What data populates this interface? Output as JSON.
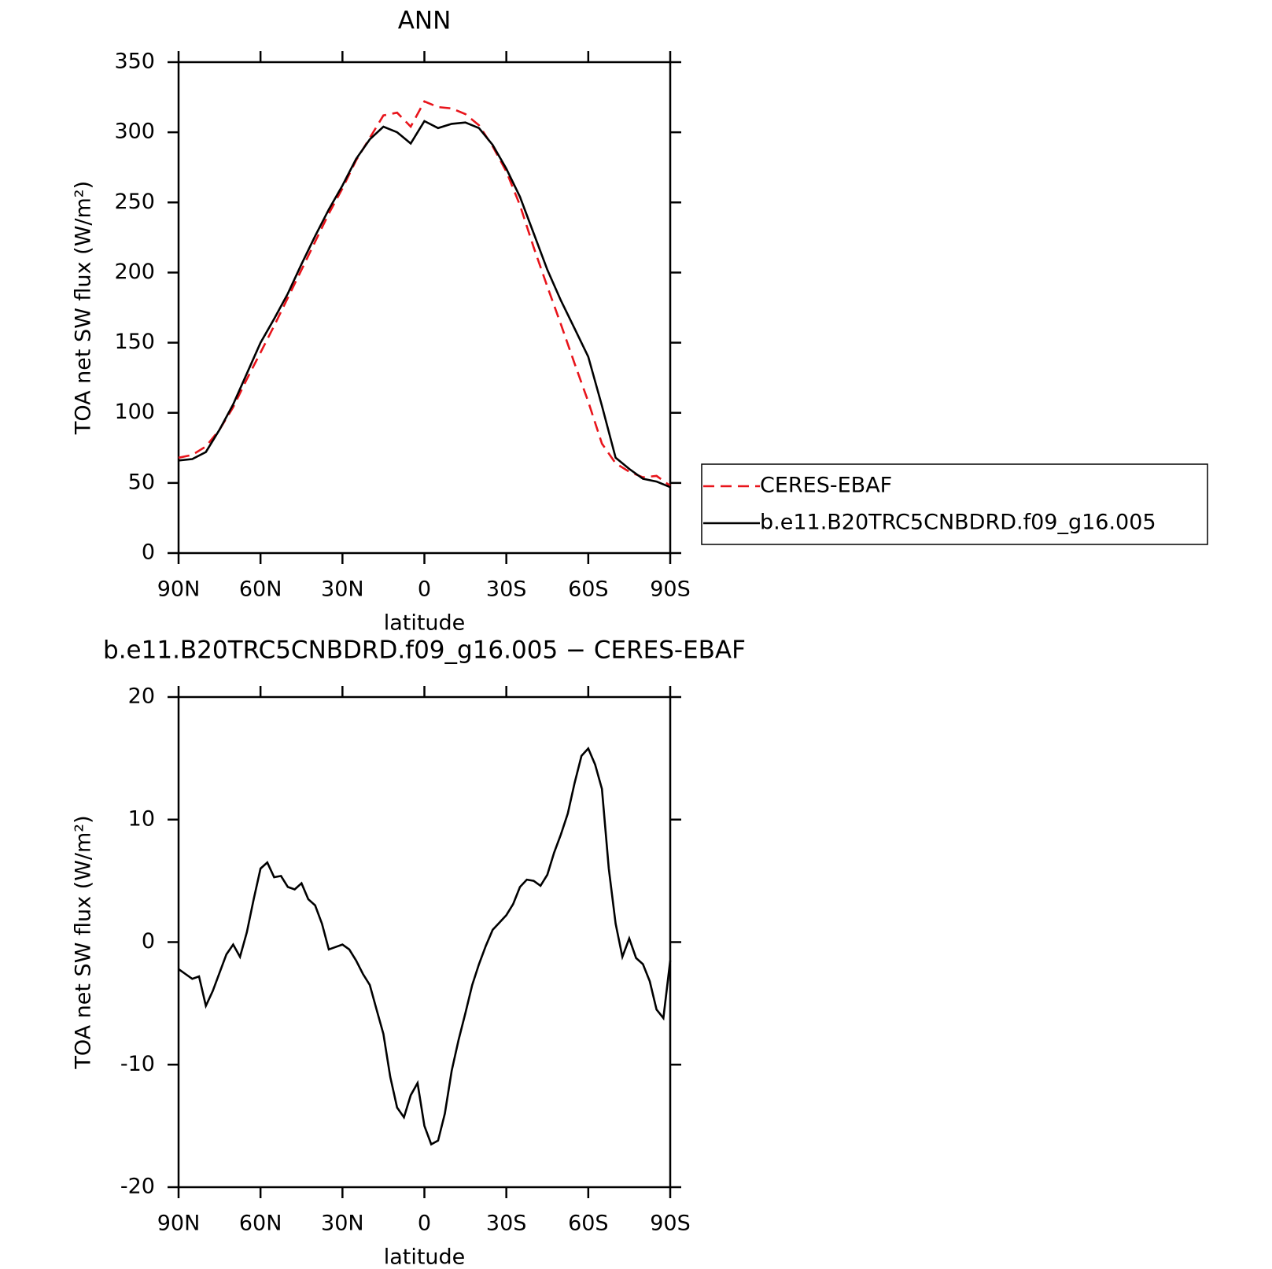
{
  "chart_data": [
    {
      "type": "line",
      "title": "ANN",
      "xlabel": "latitude",
      "ylabel": "TOA net SW flux (W/m²)",
      "x": [
        90,
        85,
        80,
        75,
        70,
        65,
        60,
        55,
        50,
        45,
        40,
        35,
        30,
        25,
        20,
        15,
        10,
        5,
        0,
        -5,
        -10,
        -15,
        -20,
        -25,
        -30,
        -35,
        -40,
        -45,
        -50,
        -55,
        -60,
        -65,
        -70,
        -75,
        -80,
        -85,
        -90
      ],
      "series": [
        {
          "name": "CERES-EBAF",
          "color": "#e8141b",
          "linestyle": "dashed",
          "values": [
            68,
            70,
            76,
            88,
            104,
            124,
            143,
            162,
            182,
            202,
            222,
            242,
            260,
            280,
            296,
            312,
            314,
            304,
            322,
            318,
            317,
            313,
            305,
            290,
            272,
            248,
            218,
            190,
            163,
            135,
            108,
            78,
            64,
            58,
            54,
            55,
            48
          ]
        },
        {
          "name": "b.e11.B20TRC5CNBDRD.f09_g16.005",
          "color": "#000000",
          "linestyle": "solid",
          "values": [
            66,
            67,
            72,
            88,
            106,
            128,
            150,
            167,
            185,
            206,
            226,
            245,
            262,
            281,
            295,
            304,
            300,
            292,
            308,
            303,
            306,
            307,
            303,
            291,
            274,
            254,
            228,
            202,
            180,
            160,
            140,
            105,
            68,
            60,
            53,
            51,
            47
          ]
        }
      ],
      "xlim": [
        90,
        -90
      ],
      "xticks": [
        {
          "value": 90,
          "label": "90N"
        },
        {
          "value": 60,
          "label": "60N"
        },
        {
          "value": 30,
          "label": "30N"
        },
        0,
        {
          "value": -30,
          "label": "30S"
        },
        {
          "value": -60,
          "label": "60S"
        },
        {
          "value": -90,
          "label": "90S"
        }
      ],
      "ylim": [
        0,
        350
      ],
      "yticks": [
        0,
        50,
        100,
        150,
        200,
        250,
        300,
        350
      ],
      "legend": "right"
    },
    {
      "type": "line",
      "title": "b.e11.B20TRC5CNBDRD.f09_g16.005 − CERES-EBAF",
      "xlabel": "latitude",
      "ylabel": "TOA net SW flux (W/m²)",
      "x": [
        90,
        87.5,
        85,
        82.5,
        80,
        77.5,
        75,
        72.5,
        70,
        67.5,
        65,
        62.5,
        60,
        57.5,
        55,
        52.5,
        50,
        47.5,
        45,
        42.5,
        40,
        37.5,
        35,
        32.5,
        30,
        27.5,
        25,
        22.5,
        20,
        17.5,
        15,
        12.5,
        10,
        7.5,
        5,
        2.5,
        0,
        -2.5,
        -5,
        -7.5,
        -10,
        -12.5,
        -15,
        -17.5,
        -20,
        -22.5,
        -25,
        -27.5,
        -30,
        -32.5,
        -35,
        -37.5,
        -40,
        -42.5,
        -45,
        -47.5,
        -50,
        -52.5,
        -55,
        -57.5,
        -60,
        -62.5,
        -65,
        -67.5,
        -70,
        -72.5,
        -75,
        -77.5,
        -80,
        -82.5,
        -85,
        -87.5,
        -90
      ],
      "series": [
        {
          "color": "#000000",
          "linestyle": "solid",
          "values": [
            -2.2,
            -2.6,
            -3.0,
            -2.8,
            -5.2,
            -4.0,
            -2.5,
            -1.0,
            -0.2,
            -1.2,
            0.8,
            3.5,
            6.0,
            6.5,
            5.3,
            5.4,
            4.5,
            4.3,
            4.8,
            3.5,
            3.0,
            1.5,
            -0.6,
            -0.4,
            -0.2,
            -0.6,
            -1.5,
            -2.6,
            -3.5,
            -5.5,
            -7.5,
            -11,
            -13.5,
            -14.3,
            -12.5,
            -11.5,
            -15,
            -16.5,
            -16.2,
            -14,
            -10.5,
            -8,
            -5.8,
            -3.5,
            -1.8,
            -0.3,
            1.0,
            1.6,
            2.2,
            3.1,
            4.5,
            5.1,
            5.0,
            4.6,
            5.5,
            7.3,
            8.8,
            10.5,
            13,
            15.2,
            15.8,
            14.5,
            12.5,
            6,
            1.5,
            -1.2,
            0.3,
            -1.3,
            -1.8,
            -3.2,
            -5.5,
            -6.2,
            -1.5
          ]
        }
      ],
      "xlim": [
        90,
        -90
      ],
      "xticks": [
        {
          "value": 90,
          "label": "90N"
        },
        {
          "value": 60,
          "label": "60N"
        },
        {
          "value": 30,
          "label": "30N"
        },
        0,
        {
          "value": -30,
          "label": "30S"
        },
        {
          "value": -60,
          "label": "60S"
        },
        {
          "value": -90,
          "label": "90S"
        }
      ],
      "ylim": [
        -20,
        20
      ],
      "yticks": [
        -20,
        -10,
        0,
        10,
        20
      ]
    }
  ]
}
